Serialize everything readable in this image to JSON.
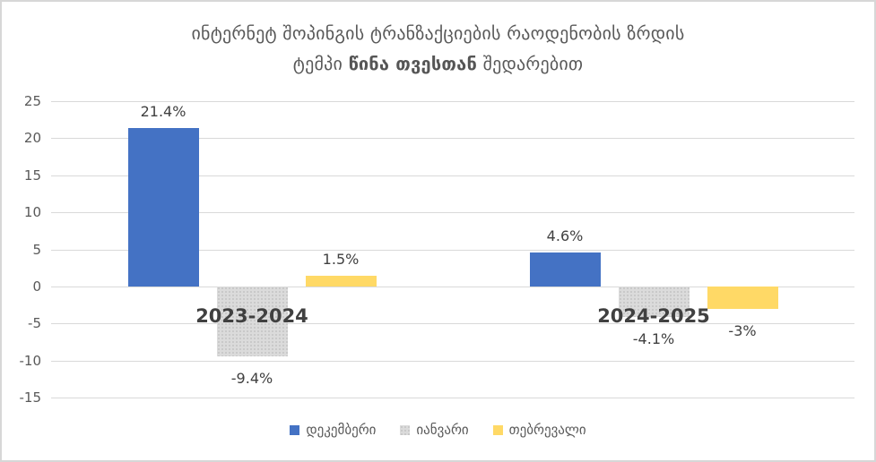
{
  "title": {
    "line1": "ინტერნეტ შოპინგის ტრანზაქციების რაოდენობის ზრდის",
    "line2_prefix": "ტემპი ",
    "line2_bold": "წინა თვესთან",
    "line2_suffix": " შედარებით"
  },
  "chart_data": {
    "type": "bar",
    "title": "ინტერნეტ შოპინგის ტრანზაქციების რაოდენობის ზრდის ტემპი წინა თვესთან შედარებით",
    "categories": [
      "2023-2024",
      "2024-2025"
    ],
    "series": [
      {
        "key": "december",
        "name": "დეკემბერი",
        "color": "#4472C4",
        "pattern": "solid",
        "values": [
          21.4,
          4.6
        ],
        "data_labels": [
          "21.4%",
          "4.6%"
        ]
      },
      {
        "key": "january",
        "name": "იანვარი",
        "color": "#DBDBDB",
        "pattern": "dots",
        "values": [
          -9.4,
          -4.1
        ],
        "data_labels": [
          "-9.4%",
          "-4.1%"
        ]
      },
      {
        "key": "february",
        "name": "თებრევალი",
        "color": "#FFD966",
        "pattern": "solid",
        "values": [
          1.5,
          -3
        ],
        "data_labels": [
          "1.5%",
          "-3%"
        ]
      }
    ],
    "xlabel": "",
    "ylabel": "",
    "ylim": [
      -15,
      25
    ],
    "yticks": [
      25,
      20,
      15,
      10,
      5,
      0,
      -5,
      -10,
      -15
    ],
    "grid": true,
    "legend_position": "bottom",
    "colors": {
      "grid": "#D9D9D9",
      "axis_text": "#595959",
      "data_label_text": "#404040",
      "category_label_text": "#404040",
      "title_text": "#595959"
    }
  }
}
